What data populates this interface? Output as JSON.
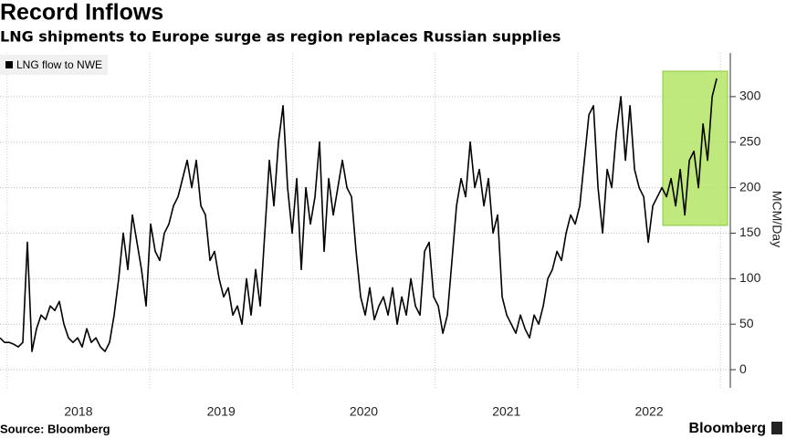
{
  "chart_data": {
    "type": "line",
    "title": "Record Inflows",
    "subtitle": "LNG shipments to Europe surge as region replaces Russian supplies",
    "y_label": "MCM/Day",
    "source": "Source: Bloomberg",
    "brand": "Bloomberg",
    "x": [
      2017.95,
      2017.982,
      2018.014,
      2018.046,
      2018.078,
      2018.11,
      2018.142,
      2018.174,
      2018.206,
      2018.238,
      2018.27,
      2018.302,
      2018.334,
      2018.366,
      2018.398,
      2018.43,
      2018.462,
      2018.494,
      2018.526,
      2018.558,
      2018.59,
      2018.622,
      2018.654,
      2018.686,
      2018.718,
      2018.75,
      2018.782,
      2018.814,
      2018.846,
      2018.878,
      2018.91,
      2018.942,
      2018.974,
      2019.006,
      2019.038,
      2019.07,
      2019.102,
      2019.134,
      2019.166,
      2019.198,
      2019.23,
      2019.262,
      2019.294,
      2019.326,
      2019.358,
      2019.39,
      2019.422,
      2019.454,
      2019.486,
      2019.518,
      2019.55,
      2019.582,
      2019.614,
      2019.646,
      2019.678,
      2019.71,
      2019.742,
      2019.774,
      2019.806,
      2019.838,
      2019.87,
      2019.902,
      2019.934,
      2019.966,
      2019.998,
      2020.03,
      2020.062,
      2020.094,
      2020.126,
      2020.158,
      2020.19,
      2020.222,
      2020.254,
      2020.286,
      2020.318,
      2020.35,
      2020.382,
      2020.414,
      2020.446,
      2020.478,
      2020.51,
      2020.542,
      2020.574,
      2020.606,
      2020.638,
      2020.67,
      2020.702,
      2020.734,
      2020.766,
      2020.798,
      2020.83,
      2020.862,
      2020.894,
      2020.926,
      2020.958,
      2020.99,
      2021.022,
      2021.054,
      2021.086,
      2021.118,
      2021.15,
      2021.182,
      2021.214,
      2021.246,
      2021.278,
      2021.31,
      2021.342,
      2021.374,
      2021.406,
      2021.438,
      2021.47,
      2021.502,
      2021.534,
      2021.566,
      2021.598,
      2021.63,
      2021.662,
      2021.694,
      2021.726,
      2021.758,
      2021.79,
      2021.822,
      2021.854,
      2021.886,
      2021.918,
      2021.95,
      2021.982,
      2022.014,
      2022.046,
      2022.078,
      2022.11,
      2022.142,
      2022.174,
      2022.206,
      2022.238,
      2022.27,
      2022.302,
      2022.334,
      2022.366,
      2022.398,
      2022.43,
      2022.462,
      2022.494,
      2022.526,
      2022.558,
      2022.59,
      2022.622,
      2022.654,
      2022.686,
      2022.718,
      2022.75,
      2022.782,
      2022.814,
      2022.846,
      2022.878,
      2022.91,
      2022.942,
      2022.974
    ],
    "series": [
      {
        "name": "LNG flow to NWE",
        "color": "#000000",
        "values": [
          35,
          30,
          30,
          28,
          25,
          30,
          140,
          20,
          45,
          60,
          55,
          70,
          65,
          75,
          50,
          35,
          30,
          35,
          25,
          45,
          30,
          35,
          25,
          20,
          30,
          60,
          100,
          150,
          110,
          170,
          140,
          110,
          70,
          160,
          130,
          120,
          150,
          160,
          180,
          190,
          210,
          230,
          200,
          230,
          180,
          170,
          120,
          130,
          100,
          80,
          90,
          60,
          70,
          50,
          100,
          60,
          110,
          70,
          150,
          230,
          180,
          250,
          290,
          200,
          150,
          210,
          110,
          200,
          160,
          190,
          250,
          130,
          210,
          170,
          200,
          230,
          200,
          190,
          130,
          80,
          60,
          90,
          55,
          70,
          80,
          60,
          90,
          50,
          80,
          60,
          100,
          70,
          60,
          130,
          140,
          80,
          70,
          40,
          60,
          120,
          180,
          210,
          190,
          250,
          200,
          220,
          180,
          210,
          150,
          170,
          80,
          60,
          50,
          40,
          60,
          45,
          35,
          60,
          50,
          70,
          100,
          110,
          130,
          120,
          150,
          170,
          160,
          180,
          230,
          280,
          290,
          200,
          150,
          220,
          200,
          260,
          300,
          230,
          290,
          220,
          200,
          190,
          140,
          180,
          190,
          200,
          190,
          210,
          180,
          220,
          170,
          230,
          240,
          200,
          270,
          230,
          300,
          320
        ]
      }
    ],
    "xlim": [
      2017.95,
      2023.05
    ],
    "xticks": [
      {
        "value": 2018.5,
        "label": "2018"
      },
      {
        "value": 2019.5,
        "label": "2019"
      },
      {
        "value": 2020.5,
        "label": "2020"
      },
      {
        "value": 2021.5,
        "label": "2021"
      },
      {
        "value": 2022.5,
        "label": "2022"
      }
    ],
    "xgrid": [
      2018,
      2019,
      2020,
      2021,
      2022,
      2023
    ],
    "ylim": [
      -20,
      348
    ],
    "yticks": [
      0,
      50,
      100,
      150,
      200,
      250,
      300
    ],
    "grid": true,
    "legend": "top-left"
  }
}
